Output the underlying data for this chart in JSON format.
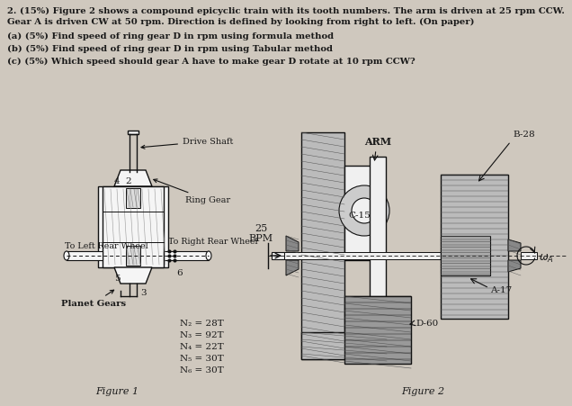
{
  "bg_color": "#cfc8be",
  "text_color": "#1a1a1a",
  "title_line1": "2. (15%) Figure 2 shows a compound epicyclic train with its tooth numbers. The arm is driven at 25 rpm CCW.",
  "title_line2": "Gear A is driven CW at 50 rpm. Direction is defined by looking from right to left. (On paper)",
  "part_a": "(a) (5%) Find speed of ring gear D in rpm using formula method",
  "part_b": "(b) (5%) Find speed of ring gear D in rpm using Tabular method",
  "part_c": "(c) (5%) Which speed should gear A have to make gear D rotate at 10 rpm CCW?",
  "fig1_tooth": [
    "N₂ = 28T",
    "N₃ = 92T",
    "N₄ = 22T",
    "N₅ = 30T",
    "N₆ = 30T"
  ],
  "fig1_caption": "Figure 1",
  "fig2_caption": "Figure 2",
  "ec": "#111111",
  "fc_white": "#ffffff",
  "fc_hatch": "#888888",
  "fc_dark": "#555555"
}
